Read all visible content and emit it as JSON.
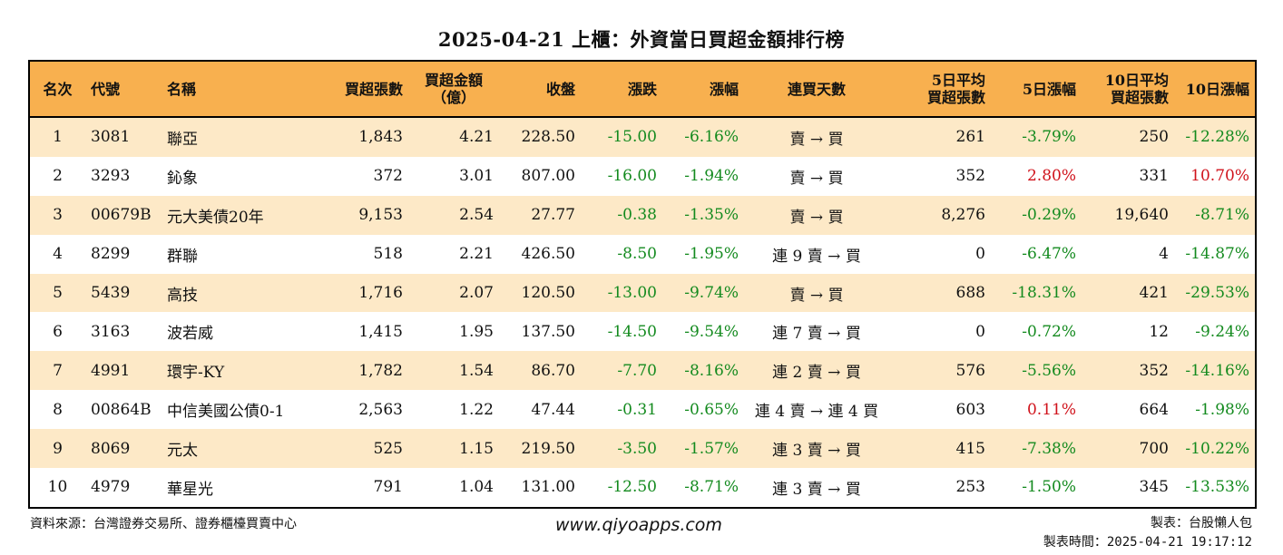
{
  "title": "2025-04-21 上櫃：外資當日買超金額排行榜",
  "headers": [
    "名次",
    "代號",
    "名稱",
    "買超張數",
    "買超金額\n（億）",
    "收盤",
    "漲跌",
    "漲幅",
    "連買天數",
    "5日平均\n買超張數",
    "5日漲幅",
    "10日平均\n買超張數",
    "10日漲幅"
  ],
  "rows": [
    {
      "rank": "1",
      "code": "3081",
      "name": "聯亞",
      "net_buy_lots": "1,843",
      "net_buy_amount": "4.21",
      "close": "228.50",
      "change": "-15.00",
      "change_pct": "-6.16%",
      "buy_days": "賣 → 買",
      "avg5_lots": "261",
      "pct5": "-3.79%",
      "avg10_lots": "250",
      "pct10": "-12.28%"
    },
    {
      "rank": "2",
      "code": "3293",
      "name": "鈊象",
      "net_buy_lots": "372",
      "net_buy_amount": "3.01",
      "close": "807.00",
      "change": "-16.00",
      "change_pct": "-1.94%",
      "buy_days": "賣 → 買",
      "avg5_lots": "352",
      "pct5": "2.80%",
      "avg10_lots": "331",
      "pct10": "10.70%"
    },
    {
      "rank": "3",
      "code": "00679B",
      "name": "元大美債20年",
      "net_buy_lots": "9,153",
      "net_buy_amount": "2.54",
      "close": "27.77",
      "change": "-0.38",
      "change_pct": "-1.35%",
      "buy_days": "賣 → 買",
      "avg5_lots": "8,276",
      "pct5": "-0.29%",
      "avg10_lots": "19,640",
      "pct10": "-8.71%"
    },
    {
      "rank": "4",
      "code": "8299",
      "name": "群聯",
      "net_buy_lots": "518",
      "net_buy_amount": "2.21",
      "close": "426.50",
      "change": "-8.50",
      "change_pct": "-1.95%",
      "buy_days": "連 9 賣 → 買",
      "avg5_lots": "0",
      "pct5": "-6.47%",
      "avg10_lots": "4",
      "pct10": "-14.87%"
    },
    {
      "rank": "5",
      "code": "5439",
      "name": "高技",
      "net_buy_lots": "1,716",
      "net_buy_amount": "2.07",
      "close": "120.50",
      "change": "-13.00",
      "change_pct": "-9.74%",
      "buy_days": "賣 → 買",
      "avg5_lots": "688",
      "pct5": "-18.31%",
      "avg10_lots": "421",
      "pct10": "-29.53%"
    },
    {
      "rank": "6",
      "code": "3163",
      "name": "波若威",
      "net_buy_lots": "1,415",
      "net_buy_amount": "1.95",
      "close": "137.50",
      "change": "-14.50",
      "change_pct": "-9.54%",
      "buy_days": "連 7 賣 → 買",
      "avg5_lots": "0",
      "pct5": "-0.72%",
      "avg10_lots": "12",
      "pct10": "-9.24%"
    },
    {
      "rank": "7",
      "code": "4991",
      "name": "環宇-KY",
      "net_buy_lots": "1,782",
      "net_buy_amount": "1.54",
      "close": "86.70",
      "change": "-7.70",
      "change_pct": "-8.16%",
      "buy_days": "連 2 賣 → 買",
      "avg5_lots": "576",
      "pct5": "-5.56%",
      "avg10_lots": "352",
      "pct10": "-14.16%"
    },
    {
      "rank": "8",
      "code": "00864B",
      "name": "中信美國公債0-1",
      "net_buy_lots": "2,563",
      "net_buy_amount": "1.22",
      "close": "47.44",
      "change": "-0.31",
      "change_pct": "-0.65%",
      "buy_days": "連 4 賣 → 連 4 買",
      "avg5_lots": "603",
      "pct5": "0.11%",
      "avg10_lots": "664",
      "pct10": "-1.98%"
    },
    {
      "rank": "9",
      "code": "8069",
      "name": "元太",
      "net_buy_lots": "525",
      "net_buy_amount": "1.15",
      "close": "219.50",
      "change": "-3.50",
      "change_pct": "-1.57%",
      "buy_days": "連 3 賣 → 買",
      "avg5_lots": "415",
      "pct5": "-7.38%",
      "avg10_lots": "700",
      "pct10": "-10.22%"
    },
    {
      "rank": "10",
      "code": "4979",
      "name": "華星光",
      "net_buy_lots": "791",
      "net_buy_amount": "1.04",
      "close": "131.00",
      "change": "-12.50",
      "change_pct": "-8.71%",
      "buy_days": "連 3 賣 → 買",
      "avg5_lots": "253",
      "pct5": "-1.50%",
      "avg10_lots": "345",
      "pct10": "-13.53%"
    }
  ],
  "footer": {
    "source": "資料來源：台灣證券交易所、證券櫃檯買賣中心",
    "website": "www.qiyoapps.com",
    "maker": "製表：台股懶人包",
    "made_time": "製表時間：2025-04-21 19:17:12"
  },
  "colors": {
    "header_bg": "#f8b04f",
    "stripe_bg": "#fde9c7",
    "negative": "#138a1e",
    "positive": "#d0121b"
  }
}
